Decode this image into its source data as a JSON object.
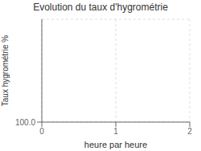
{
  "chart_data": {
    "type": "line",
    "title": "Evolution du taux d'hygrométrie",
    "xlabel": "heure par heure",
    "ylabel": "Taux hygrométrie %",
    "xlim": [
      0,
      2
    ],
    "ylim": [
      100.0,
      500.0
    ],
    "xticks": [
      0,
      1,
      2
    ],
    "yticks": [
      {
        "value": 100.0,
        "label": "100.0"
      }
    ],
    "grid": true
  }
}
